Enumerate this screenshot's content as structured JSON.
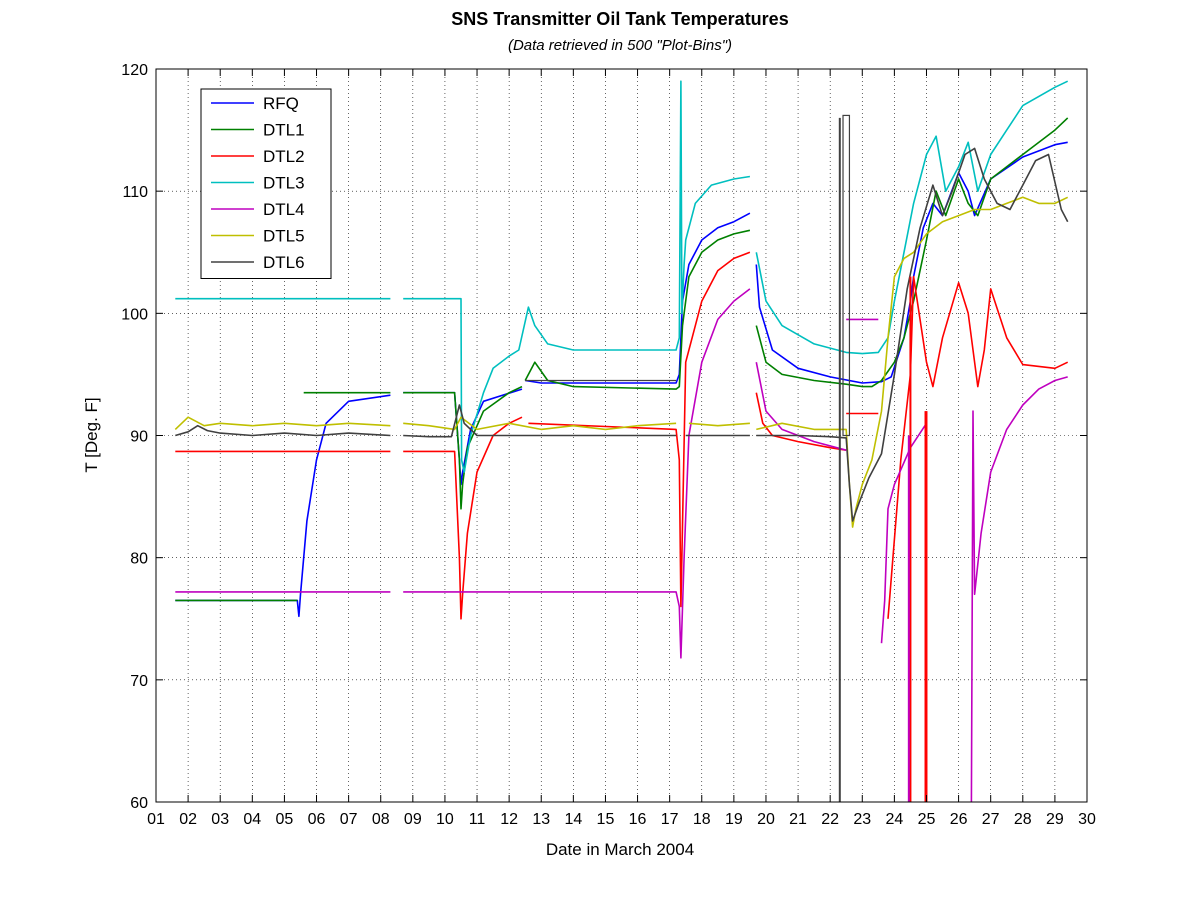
{
  "chart_data": {
    "type": "line",
    "title": "SNS Transmitter Oil Tank Temperatures",
    "subtitle": "(Data retrieved in 500 \"Plot-Bins\")",
    "xlabel": "Date in March 2004",
    "ylabel": "T [Deg. F]",
    "xlim": [
      1,
      30
    ],
    "ylim": [
      60,
      120
    ],
    "x_ticks": [
      1,
      2,
      3,
      4,
      5,
      6,
      7,
      8,
      9,
      10,
      11,
      12,
      13,
      14,
      15,
      16,
      17,
      18,
      19,
      20,
      21,
      22,
      23,
      24,
      25,
      26,
      27,
      28,
      29,
      30
    ],
    "x_tick_labels": [
      "01",
      "02",
      "03",
      "04",
      "05",
      "06",
      "07",
      "08",
      "09",
      "10",
      "11",
      "12",
      "13",
      "14",
      "15",
      "16",
      "17",
      "18",
      "19",
      "20",
      "21",
      "22",
      "23",
      "24",
      "25",
      "26",
      "27",
      "28",
      "29",
      "30"
    ],
    "y_ticks": [
      60,
      70,
      80,
      90,
      100,
      110,
      120
    ],
    "y_tick_labels": [
      "60",
      "70",
      "80",
      "90",
      "100",
      "110",
      "120"
    ],
    "grid": true,
    "legend_position": "top-left",
    "series": [
      {
        "name": "RFQ",
        "color": "#0000ff",
        "x": [
          1.6,
          5.4,
          5.45,
          5.5,
          5.7,
          6.0,
          6.3,
          7.0,
          8.3,
          null,
          8.7,
          10.3,
          10.45,
          10.5,
          10.55,
          10.8,
          11.2,
          12.4,
          null,
          12.5,
          13.0,
          17.2,
          17.3,
          17.4,
          17.6,
          18.0,
          18.5,
          19.0,
          19.5,
          null,
          19.7,
          19.8,
          20.2,
          21.0,
          22.0,
          23.0,
          23.6,
          23.9,
          24.3,
          24.5,
          24.6,
          24.9,
          25.2,
          25.5,
          26.0,
          26.3,
          26.5,
          27.0,
          28.0,
          29.0,
          29.4
        ],
        "y": [
          76.5,
          76.5,
          75.2,
          77.0,
          83.0,
          88.0,
          91.0,
          92.8,
          93.3,
          null,
          93.5,
          93.5,
          88.0,
          86.0,
          87.0,
          90.5,
          92.8,
          93.8,
          null,
          94.5,
          94.3,
          94.3,
          95.0,
          101.0,
          104.0,
          106.0,
          107.0,
          107.5,
          108.2,
          null,
          104.0,
          100.5,
          97.0,
          95.5,
          94.8,
          94.3,
          94.4,
          94.8,
          98.0,
          101.0,
          103.0,
          107.0,
          109.0,
          108.0,
          111.5,
          110.0,
          108.0,
          111.0,
          112.8,
          113.8,
          114.0
        ]
      },
      {
        "name": "DTL1",
        "color": "#008000",
        "x": [
          1.6,
          5.4,
          null,
          5.6,
          8.3,
          null,
          8.7,
          10.3,
          10.45,
          10.5,
          10.55,
          10.7,
          11.2,
          12.0,
          12.4,
          null,
          12.5,
          12.8,
          13.2,
          14.0,
          17.2,
          17.3,
          17.4,
          17.6,
          18.0,
          18.5,
          19.0,
          19.5,
          null,
          19.7,
          20.0,
          20.5,
          21.5,
          22.5,
          23.0,
          23.3,
          23.6,
          24.0,
          24.3,
          24.6,
          25.0,
          25.3,
          25.6,
          26.0,
          26.3,
          26.6,
          27.0,
          28.0,
          29.0,
          29.4
        ],
        "y": [
          76.5,
          76.5,
          null,
          93.5,
          93.5,
          null,
          93.5,
          93.5,
          88.0,
          84.0,
          86.0,
          89.0,
          92.0,
          93.5,
          94.0,
          null,
          94.5,
          96.0,
          94.5,
          94.0,
          93.8,
          94.0,
          99.0,
          103.0,
          105.0,
          106.0,
          106.5,
          106.8,
          null,
          99.0,
          96.0,
          95.0,
          94.5,
          94.2,
          94.0,
          94.0,
          94.5,
          96.0,
          98.0,
          101.0,
          106.0,
          110.0,
          108.0,
          111.0,
          109.0,
          108.0,
          111.0,
          113.0,
          115.0,
          116.0
        ]
      },
      {
        "name": "DTL2",
        "color": "#ff0000",
        "x": [
          1.6,
          8.3,
          null,
          8.7,
          10.3,
          10.45,
          10.5,
          10.55,
          10.7,
          11.0,
          11.5,
          12.0,
          12.4,
          null,
          12.6,
          17.2,
          17.3,
          17.35,
          17.5,
          18.0,
          18.5,
          19.0,
          19.5,
          null,
          19.7,
          19.9,
          20.2,
          21.0,
          22.0,
          22.5,
          null,
          22.5,
          23.5,
          null,
          23.8,
          24.2,
          24.5,
          24.6,
          25.0,
          25.2,
          25.5,
          26.0,
          26.3,
          26.6,
          26.8,
          27.0,
          27.5,
          28.0,
          29.0,
          29.4
        ],
        "y": [
          88.7,
          88.7,
          null,
          88.7,
          88.7,
          80.0,
          75.0,
          77.0,
          82.0,
          87.0,
          90.0,
          91.0,
          91.5,
          null,
          91.0,
          90.5,
          88.0,
          76.0,
          96.0,
          101.0,
          103.5,
          104.5,
          105.0,
          null,
          93.5,
          91.0,
          90.0,
          89.5,
          89.0,
          88.8,
          null,
          91.8,
          91.8,
          null,
          75.0,
          88.0,
          95.0,
          103.0,
          96.0,
          94.0,
          98.0,
          102.5,
          100.0,
          94.0,
          97.0,
          102.0,
          98.0,
          95.8,
          95.5,
          96.0
        ]
      },
      {
        "name": "DTL3",
        "color": "#00bfbf",
        "x": [
          1.6,
          8.3,
          null,
          8.7,
          10.5,
          10.52,
          10.6,
          10.8,
          11.2,
          11.5,
          12.0,
          12.3,
          12.6,
          12.8,
          13.2,
          14.0,
          16.0,
          17.2,
          17.3,
          17.35,
          17.38,
          17.45,
          17.5,
          17.8,
          18.3,
          19.0,
          19.5,
          null,
          19.7,
          20.0,
          20.5,
          21.5,
          22.5,
          23.0,
          23.5,
          23.8,
          24.0,
          24.3,
          24.6,
          25.0,
          25.3,
          25.6,
          26.0,
          26.3,
          26.6,
          27.0,
          27.5,
          28.0,
          29.0,
          29.4
        ],
        "y": [
          101.2,
          101.2,
          null,
          101.2,
          101.2,
          88.0,
          87.0,
          90.0,
          93.5,
          95.5,
          96.5,
          97.0,
          100.5,
          99.0,
          97.5,
          97.0,
          97.0,
          97.0,
          98.0,
          119.0,
          100.0,
          104.0,
          106.0,
          109.0,
          110.5,
          111.0,
          111.2,
          null,
          105.0,
          101.0,
          99.0,
          97.5,
          96.8,
          96.7,
          96.8,
          98.0,
          101.0,
          105.0,
          109.0,
          113.0,
          114.5,
          110.0,
          112.0,
          114.0,
          110.0,
          113.0,
          115.0,
          117.0,
          118.5,
          119.0
        ]
      },
      {
        "name": "DTL4",
        "color": "#bf00bf",
        "x": [
          1.6,
          8.3,
          null,
          8.7,
          17.2,
          17.3,
          17.35,
          17.45,
          17.6,
          18.0,
          18.5,
          19.0,
          19.5,
          null,
          19.7,
          20.0,
          20.5,
          21.5,
          22.5,
          null,
          22.5,
          23.5,
          null,
          23.6,
          23.7,
          23.8,
          24.0,
          24.5,
          25.0,
          null,
          26.4,
          26.45,
          26.5,
          26.7,
          27.0,
          27.5,
          28.0,
          28.5,
          29.0,
          29.4
        ],
        "y": [
          77.2,
          77.2,
          null,
          77.2,
          77.2,
          76.0,
          71.8,
          80.0,
          90.0,
          96.0,
          99.5,
          101.0,
          102.0,
          null,
          96.0,
          92.0,
          90.5,
          89.5,
          88.8,
          null,
          99.5,
          99.5,
          null,
          73.0,
          76.5,
          84.0,
          86.0,
          89.0,
          91.0,
          null,
          60.0,
          92.0,
          77.0,
          82.0,
          87.0,
          90.5,
          92.5,
          93.8,
          94.5,
          94.8
        ]
      },
      {
        "name": "DTL5",
        "color": "#bfbf00",
        "x": [
          1.6,
          2.0,
          2.5,
          3.0,
          4.0,
          5.0,
          6.0,
          7.0,
          8.3,
          null,
          8.7,
          9.5,
          10.3,
          10.5,
          11.0,
          12.0,
          13.0,
          14.0,
          15.0,
          16.0,
          17.2,
          null,
          17.6,
          18.5,
          19.5,
          null,
          19.7,
          20.5,
          21.5,
          22.5,
          22.6,
          22.7,
          22.8,
          23.0,
          23.3,
          23.6,
          23.8,
          24.0,
          24.3,
          24.6,
          25.0,
          25.5,
          26.0,
          26.5,
          27.0,
          27.5,
          28.0,
          28.5,
          29.0,
          29.4
        ],
        "y": [
          90.5,
          91.5,
          90.8,
          91.0,
          90.8,
          91.0,
          90.8,
          91.0,
          90.8,
          null,
          91.0,
          90.8,
          90.5,
          91.5,
          90.5,
          91.0,
          90.5,
          90.8,
          90.5,
          90.8,
          91.0,
          null,
          91.0,
          90.8,
          91.0,
          null,
          90.5,
          91.0,
          90.5,
          90.5,
          86.0,
          82.5,
          84.0,
          86.0,
          88.0,
          92.0,
          98.0,
          103.0,
          104.5,
          105.0,
          106.5,
          107.5,
          108.0,
          108.5,
          108.5,
          109.0,
          109.5,
          109.0,
          109.0,
          109.5
        ]
      },
      {
        "name": "DTL6",
        "color": "#404040",
        "x": [
          1.6,
          2.0,
          2.3,
          2.6,
          3.0,
          4.0,
          5.0,
          6.0,
          7.0,
          8.3,
          null,
          8.7,
          9.5,
          10.2,
          10.45,
          10.6,
          11.0,
          11.5,
          12.0,
          13.0,
          14.0,
          15.0,
          16.0,
          17.2,
          null,
          17.5,
          18.5,
          19.5,
          null,
          19.7,
          21.0,
          22.0,
          22.5,
          22.6,
          22.7,
          22.9,
          23.2,
          23.6,
          24.0,
          24.4,
          24.8,
          25.2,
          25.5,
          25.8,
          26.2,
          26.5,
          26.8,
          27.2,
          27.6,
          28.0,
          28.4,
          28.8,
          29.2,
          29.4
        ],
        "y": [
          90.0,
          90.3,
          90.8,
          90.4,
          90.2,
          90.0,
          90.2,
          90.0,
          90.2,
          90.0,
          null,
          90.0,
          89.9,
          89.9,
          92.5,
          91.0,
          90.0,
          90.0,
          90.0,
          90.0,
          90.0,
          90.0,
          90.0,
          90.0,
          null,
          90.0,
          90.0,
          90.0,
          null,
          90.0,
          90.0,
          89.9,
          89.8,
          86.0,
          83.0,
          84.5,
          86.5,
          88.5,
          95.0,
          102.0,
          107.0,
          110.5,
          108.0,
          110.0,
          113.0,
          113.5,
          111.0,
          109.0,
          108.5,
          110.5,
          112.5,
          113.0,
          108.5,
          107.5
        ]
      }
    ],
    "flat_segments": [
      {
        "color": "#404040",
        "x": [
          12.5,
          17.2
        ],
        "y": 94.5
      }
    ],
    "spikes": [
      {
        "color": "#ff0000",
        "x": 24.5,
        "y": [
          60,
          103
        ]
      },
      {
        "color": "#ff0000",
        "x": 24.97,
        "y": [
          60,
          92
        ]
      },
      {
        "color": "#ff0000",
        "x": 25.0,
        "y": [
          60,
          92
        ]
      },
      {
        "color": "#bf00bf",
        "x": 24.45,
        "y": [
          60,
          90
        ]
      },
      {
        "color": "#404040",
        "x": 22.3,
        "y": [
          60,
          116
        ]
      }
    ],
    "boxes": [
      {
        "color": "#404040",
        "x": [
          22.4,
          22.6
        ],
        "y": [
          90,
          116.2
        ]
      }
    ]
  }
}
